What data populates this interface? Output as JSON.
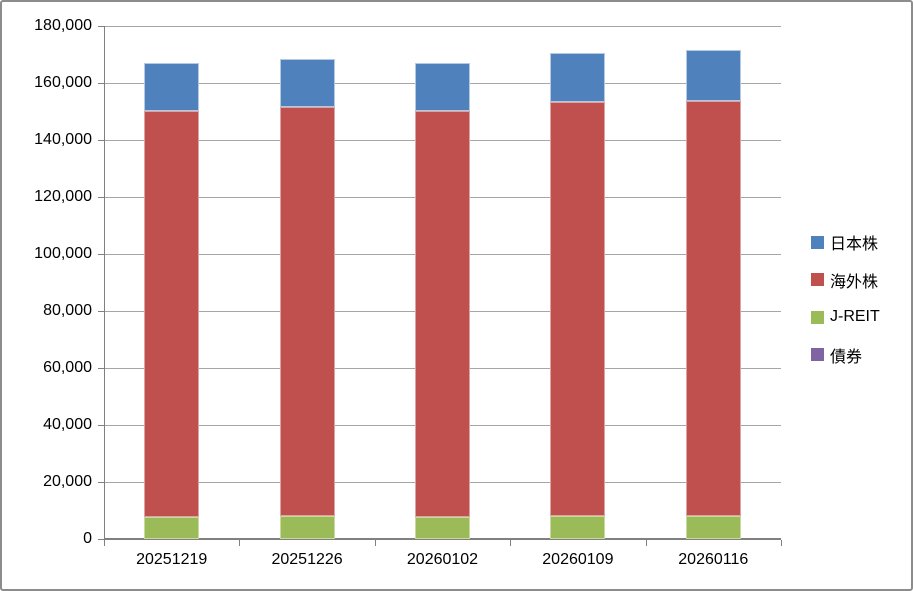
{
  "chart_data": {
    "type": "bar",
    "stacked": true,
    "title": "",
    "xlabel": "",
    "ylabel": "",
    "categories": [
      "20251219",
      "20251226",
      "20260102",
      "20260109",
      "20260116"
    ],
    "series": [
      {
        "name": "日本株",
        "color": "#4F81BD",
        "border": "#B5C9E2",
        "values": [
          16900,
          16900,
          16900,
          17300,
          17800
        ]
      },
      {
        "name": "海外株",
        "color": "#C0504D",
        "border": "#DCA5A3",
        "values": [
          142500,
          143600,
          142400,
          145300,
          145800
        ]
      },
      {
        "name": "J-REIT",
        "color": "#9BBB59",
        "border": "#C9DA9F",
        "values": [
          7600,
          7900,
          7700,
          7900,
          8000
        ]
      },
      {
        "name": "債券",
        "color": "#8064A2",
        "border": "#BBA9CD",
        "values": [
          0,
          0,
          0,
          0,
          0
        ]
      }
    ],
    "stack_order_bottom_to_top": [
      "債券",
      "J-REIT",
      "海外株",
      "日本株"
    ],
    "totals": [
      167000,
      168400,
      167000,
      170500,
      171600
    ],
    "ylim": [
      0,
      180000
    ],
    "ytick_step": 20000,
    "y_tick_labels": [
      "0",
      "20,000",
      "40,000",
      "60,000",
      "80,000",
      "100,000",
      "120,000",
      "140,000",
      "160,000",
      "180,000"
    ],
    "grid": true,
    "legend_position": "right",
    "colors": {
      "gridline": "#A6A6A6",
      "axis": "#808080",
      "text": "#000000",
      "background": "#FFFFFF",
      "frame_border": "#8C8C8C"
    }
  }
}
